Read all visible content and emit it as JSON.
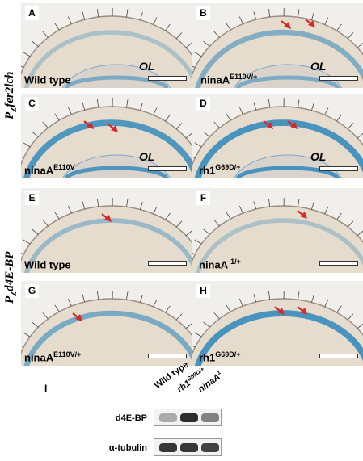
{
  "side_labels": {
    "top": {
      "prefix": "P",
      "sub": "Z",
      "name": "fer2lch"
    },
    "bottom": {
      "prefix": "P",
      "sub": "Z",
      "name": "d4E-BP"
    }
  },
  "panels": [
    {
      "letter": "A",
      "genotype": "Wild type",
      "superscript": "",
      "ol": true
    },
    {
      "letter": "B",
      "genotype": "ninaA",
      "superscript": "E110V/+",
      "ol": true
    },
    {
      "letter": "C",
      "genotype": "ninaA",
      "superscript": "E110V",
      "ol": true
    },
    {
      "letter": "D",
      "genotype": "rh1",
      "superscript": "G69D/+",
      "ol": true
    },
    {
      "letter": "E",
      "genotype": "Wild type",
      "superscript": "",
      "ol": false
    },
    {
      "letter": "F",
      "genotype": "ninaA",
      "superscript": "-1/+",
      "ol": false
    },
    {
      "letter": "G",
      "genotype": "ninaA",
      "superscript": "E110V/+",
      "ol": false
    },
    {
      "letter": "H",
      "genotype": "rh1",
      "superscript": "G69D/+",
      "ol": false
    }
  ],
  "ol_label": "OL",
  "blot": {
    "letter": "I",
    "lanes": [
      {
        "label": "Wild type",
        "superscript": ""
      },
      {
        "label": "rh1",
        "superscript": "G69D/+"
      },
      {
        "label": "ninaA",
        "superscript": "1"
      }
    ],
    "rows": [
      {
        "label": "d4E-BP",
        "intensities": [
          0.35,
          0.95,
          0.55
        ]
      },
      {
        "label": "α-tubulin",
        "intensities": [
          0.9,
          0.9,
          0.85
        ]
      }
    ]
  },
  "colors": {
    "stain_blue": "#3f8fbe",
    "tissue": "#e6dccd",
    "arrow_red": "#d42a2a"
  }
}
